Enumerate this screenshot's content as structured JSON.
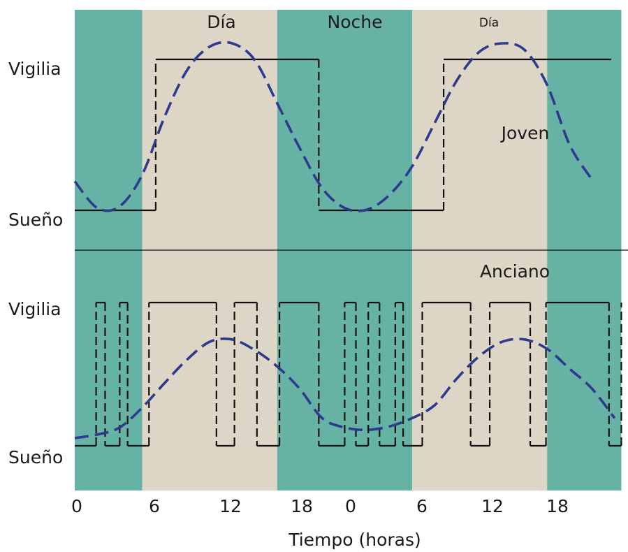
{
  "chart_data": {
    "type": "line",
    "xlabel": "Tiempo (horas)",
    "x_ticks": [
      "0",
      "6",
      "12",
      "18",
      "0",
      "6",
      "12",
      "18"
    ],
    "period_labels": [
      "Día",
      "Noche",
      "Día"
    ],
    "phases": [
      {
        "kind": "noche",
        "start_h": 0,
        "end_h": 6
      },
      {
        "kind": "dia",
        "start_h": 6,
        "end_h": 18
      },
      {
        "kind": "noche",
        "start_h": 18,
        "end_h": 30
      },
      {
        "kind": "dia",
        "start_h": 30,
        "end_h": 42
      },
      {
        "kind": "noche",
        "start_h": 42,
        "end_h": 48.6
      }
    ],
    "colors": {
      "noche": "#66b3a5",
      "dia": "#ddd5c5",
      "curve": "#2e3a8c",
      "state": "#111111"
    },
    "panels": [
      {
        "label": "Joven",
        "y_labels": {
          "top": "Vigilia",
          "bottom": "Sueño"
        },
        "curve": [
          [
            0,
            0.17
          ],
          [
            2,
            0.01
          ],
          [
            4,
            0.02
          ],
          [
            6,
            0.21
          ],
          [
            8,
            0.56
          ],
          [
            10,
            0.84
          ],
          [
            12,
            0.98
          ],
          [
            14,
            1.0
          ],
          [
            16,
            0.9
          ],
          [
            18,
            0.64
          ],
          [
            20,
            0.37
          ],
          [
            22,
            0.13
          ],
          [
            24,
            0.01
          ],
          [
            26,
            0.0
          ],
          [
            28,
            0.09
          ],
          [
            30,
            0.26
          ],
          [
            32,
            0.52
          ],
          [
            34,
            0.78
          ],
          [
            36,
            0.95
          ],
          [
            38,
            1.0
          ],
          [
            40,
            0.96
          ],
          [
            42,
            0.75
          ],
          [
            44,
            0.39
          ],
          [
            46,
            0.18
          ]
        ],
        "state_steps": [
          [
            0,
            0
          ],
          [
            7.2,
            0
          ],
          [
            7.2,
            1
          ],
          [
            21.7,
            1
          ],
          [
            21.7,
            0
          ],
          [
            32.8,
            0
          ],
          [
            32.8,
            1
          ],
          [
            47.7,
            1
          ]
        ]
      },
      {
        "label": "Anciano",
        "y_labels": {
          "top": "Vigilia",
          "bottom": "Sueño"
        },
        "curve": [
          [
            0,
            0.03
          ],
          [
            2,
            0.06
          ],
          [
            4,
            0.12
          ],
          [
            6,
            0.29
          ],
          [
            8,
            0.5
          ],
          [
            10,
            0.7
          ],
          [
            12,
            0.85
          ],
          [
            14,
            0.87
          ],
          [
            16,
            0.78
          ],
          [
            18,
            0.64
          ],
          [
            20,
            0.45
          ],
          [
            22,
            0.2
          ],
          [
            24,
            0.12
          ],
          [
            26,
            0.1
          ],
          [
            28,
            0.13
          ],
          [
            30,
            0.2
          ],
          [
            32,
            0.31
          ],
          [
            34,
            0.54
          ],
          [
            36,
            0.73
          ],
          [
            38,
            0.85
          ],
          [
            40,
            0.87
          ],
          [
            42,
            0.79
          ],
          [
            44,
            0.62
          ],
          [
            46,
            0.45
          ],
          [
            48,
            0.2
          ]
        ],
        "state_steps": [
          [
            0,
            0
          ],
          [
            1.9,
            0
          ],
          [
            1.9,
            1
          ],
          [
            2.7,
            1
          ],
          [
            2.7,
            0
          ],
          [
            4.0,
            0
          ],
          [
            4.0,
            1
          ],
          [
            4.7,
            1
          ],
          [
            4.7,
            0
          ],
          [
            6.6,
            0
          ],
          [
            6.6,
            1
          ],
          [
            12.6,
            1
          ],
          [
            12.6,
            0
          ],
          [
            14.2,
            0
          ],
          [
            14.2,
            1
          ],
          [
            16.2,
            1
          ],
          [
            16.2,
            0
          ],
          [
            18.2,
            0
          ],
          [
            18.2,
            1
          ],
          [
            21.7,
            1
          ],
          [
            21.7,
            0
          ],
          [
            24.0,
            0
          ],
          [
            24.0,
            1
          ],
          [
            25.0,
            1
          ],
          [
            25.0,
            0
          ],
          [
            26.1,
            0
          ],
          [
            26.1,
            1
          ],
          [
            27.1,
            1
          ],
          [
            27.1,
            0
          ],
          [
            28.5,
            0
          ],
          [
            28.5,
            1
          ],
          [
            29.2,
            1
          ],
          [
            29.2,
            0
          ],
          [
            30.9,
            0
          ],
          [
            30.9,
            1
          ],
          [
            35.2,
            1
          ],
          [
            35.2,
            0
          ],
          [
            36.9,
            0
          ],
          [
            36.9,
            1
          ],
          [
            40.5,
            1
          ],
          [
            40.5,
            0
          ],
          [
            41.9,
            0
          ],
          [
            41.9,
            1
          ],
          [
            47.5,
            1
          ],
          [
            47.5,
            0
          ],
          [
            48.6,
            0
          ],
          [
            48.6,
            1
          ]
        ]
      }
    ]
  }
}
